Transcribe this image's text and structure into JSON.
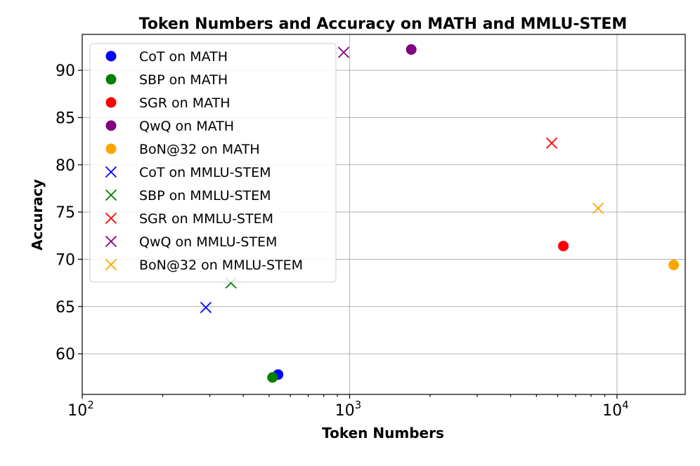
{
  "chart_data": {
    "type": "scatter",
    "title": "Token Numbers and Accuracy on MATH and MMLU-STEM",
    "xlabel": "Token Numbers",
    "ylabel": "Accuracy",
    "xscale": "log",
    "xlim": [
      100,
      18000
    ],
    "ylim": [
      55.7,
      93.8
    ],
    "xticks": [
      {
        "value": 100,
        "base": "10",
        "exp": "2"
      },
      {
        "value": 1000,
        "base": "10",
        "exp": "3"
      },
      {
        "value": 10000,
        "base": "10",
        "exp": "4"
      }
    ],
    "yticks": [
      60,
      65,
      70,
      75,
      80,
      85,
      90
    ],
    "grid": true,
    "legend_position": "top-left",
    "series": [
      {
        "name": "CoT on MATH",
        "marker": "circle",
        "color": "#0000ff",
        "points": [
          {
            "x": 540,
            "y": 57.8
          }
        ]
      },
      {
        "name": "SBP on MATH",
        "marker": "circle",
        "color": "#008000",
        "points": [
          {
            "x": 515,
            "y": 57.5
          }
        ]
      },
      {
        "name": "SGR on MATH",
        "marker": "circle",
        "color": "#ff0000",
        "points": [
          {
            "x": 6300,
            "y": 71.4
          }
        ]
      },
      {
        "name": "QwQ on MATH",
        "marker": "circle",
        "color": "#800080",
        "points": [
          {
            "x": 1700,
            "y": 92.2
          }
        ]
      },
      {
        "name": "BoN@32 on MATH",
        "marker": "circle",
        "color": "#ffa500",
        "points": [
          {
            "x": 16300,
            "y": 69.4
          }
        ]
      },
      {
        "name": "CoT on MMLU-STEM",
        "marker": "x",
        "color": "#0000ff",
        "points": [
          {
            "x": 290,
            "y": 64.9
          }
        ]
      },
      {
        "name": "SBP on MMLU-STEM",
        "marker": "x",
        "color": "#008000",
        "points": [
          {
            "x": 360,
            "y": 67.5
          }
        ]
      },
      {
        "name": "SGR on MMLU-STEM",
        "marker": "x",
        "color": "#ff0000",
        "points": [
          {
            "x": 5700,
            "y": 82.3
          }
        ]
      },
      {
        "name": "QwQ on MMLU-STEM",
        "marker": "x",
        "color": "#800080",
        "points": [
          {
            "x": 950,
            "y": 91.9
          }
        ]
      },
      {
        "name": "BoN@32 on MMLU-STEM",
        "marker": "x",
        "color": "#ffa500",
        "points": [
          {
            "x": 8500,
            "y": 75.4
          }
        ]
      }
    ]
  }
}
